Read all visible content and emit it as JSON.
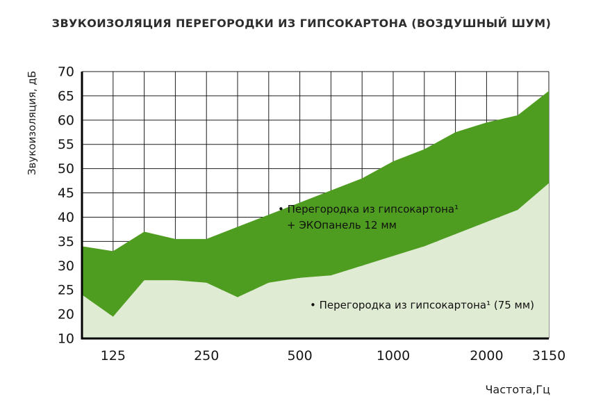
{
  "title": "ЗВУКОИЗОЛЯЦИЯ ПЕРЕГОРОДКИ ИЗ ГИПСОКАРТОНА (ВОЗДУШНЫЙ ШУМ)",
  "chart_data": {
    "type": "area",
    "title": "ЗВУКОИЗОЛЯЦИЯ ПЕРЕГОРОДКИ ИЗ ГИПСОКАРТОНА (ВОЗДУШНЫЙ ШУМ)",
    "xlabel": "Частота,Гц",
    "ylabel": "Звукоизоляция, дБ",
    "x_scale": "log-1/3-octave",
    "grid": true,
    "ylim": [
      10,
      70
    ],
    "frequencies": [
      100,
      125,
      160,
      200,
      250,
      315,
      400,
      500,
      630,
      800,
      1000,
      1250,
      1600,
      2000,
      2500,
      3150
    ],
    "x_tick_labels": [
      {
        "label": "125",
        "band": 1
      },
      {
        "label": "250",
        "band": 4
      },
      {
        "label": "500",
        "band": 7
      },
      {
        "label": "1000",
        "band": 10
      },
      {
        "label": "2000",
        "band": 13
      },
      {
        "label": "3150",
        "band": 15
      }
    ],
    "y_ticks": [
      70,
      65,
      60,
      55,
      50,
      45,
      40,
      35,
      30,
      25,
      20,
      10
    ],
    "series": [
      {
        "name": "Перегородка из гипсокартона¹ + ЭКОпанель 12 мм",
        "color": "#4e9d20",
        "values": [
          34,
          33,
          37,
          35.5,
          35.5,
          38,
          40.5,
          43,
          45.5,
          48,
          51.5,
          54,
          57.5,
          59.5,
          61,
          66
        ]
      },
      {
        "name": "Перегородка из гипсокартона¹ (75 мм)",
        "color": "#dfebd3",
        "values": [
          24,
          19,
          27,
          27,
          26.5,
          23.5,
          26.5,
          27.5,
          28,
          30,
          32,
          34,
          36.5,
          39,
          41.5,
          47
        ]
      }
    ],
    "annotations": {
      "series1_line1": "• Перегородка из гипсокартона¹",
      "series1_line2": "+ ЭКОпанель 12 мм",
      "series2": "• Перегородка из гипсокартона¹ (75 мм)"
    },
    "colors": {
      "grid": "#1c1c1c",
      "axis": "#000000",
      "text": "#151515"
    }
  }
}
